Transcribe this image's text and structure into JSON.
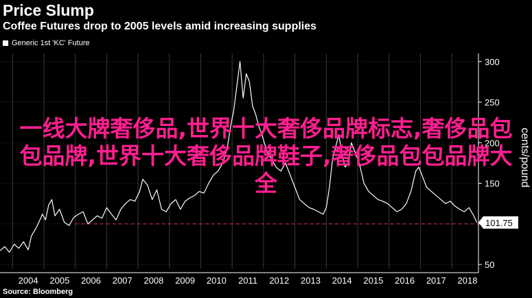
{
  "title": "Price Slump",
  "subtitle": "Coffee Futures drop to 2005 levels amid increasing supplies",
  "legend_label": "Generic 1st 'KC' Future",
  "source": "Source: Bloomberg",
  "overlay_text": "一线大牌奢侈品,世界十大奢侈品牌标志,奢侈品包包品牌,世界十大奢侈品牌鞋子,奢侈品包包品牌大全",
  "colors": {
    "background": "#000000",
    "line": "#ffffff",
    "reference_line": "#cc2a4a",
    "overlay": "#ff1f8f",
    "grid": "#3a3a3a",
    "value_box": "#ffffff"
  },
  "chart_data": {
    "type": "line",
    "ylabel": "cents/pound",
    "xlabel": "",
    "ylim": [
      45,
      310
    ],
    "y_ticks": [
      50,
      100,
      150,
      200,
      250,
      300
    ],
    "y_tick_labels": [
      "50",
      "",
      "150",
      "200",
      "250",
      "300"
    ],
    "x_ticks": [
      "2004",
      "2005",
      "2006",
      "2007",
      "2008",
      "2009",
      "2010",
      "2011",
      "2012",
      "2013",
      "2014",
      "2015",
      "2016",
      "2017",
      "2018"
    ],
    "xlim": [
      2003.6,
      2018.85
    ],
    "last_value_label": "101.75",
    "reference_value": 100,
    "grid": true,
    "legend": "top-left",
    "series": [
      {
        "name": "Generic 1st 'KC' Future",
        "x": [
          2003.6,
          2003.75,
          2003.9,
          2004.05,
          2004.2,
          2004.35,
          2004.5,
          2004.6,
          2004.75,
          2004.85,
          2004.95,
          2005.05,
          2005.15,
          2005.25,
          2005.35,
          2005.5,
          2005.65,
          2005.8,
          2005.95,
          2006.1,
          2006.25,
          2006.4,
          2006.55,
          2006.7,
          2006.85,
          2007.0,
          2007.15,
          2007.3,
          2007.45,
          2007.6,
          2007.75,
          2007.9,
          2008.05,
          2008.15,
          2008.3,
          2008.45,
          2008.6,
          2008.75,
          2008.9,
          2009.05,
          2009.2,
          2009.35,
          2009.5,
          2009.65,
          2009.8,
          2009.95,
          2010.1,
          2010.25,
          2010.4,
          2010.55,
          2010.7,
          2010.85,
          2010.95,
          2011.05,
          2011.15,
          2011.25,
          2011.35,
          2011.45,
          2011.55,
          2011.65,
          2011.75,
          2011.85,
          2011.95,
          2012.1,
          2012.25,
          2012.4,
          2012.55,
          2012.7,
          2012.85,
          2013.0,
          2013.15,
          2013.3,
          2013.45,
          2013.6,
          2013.75,
          2013.9,
          2014.0,
          2014.1,
          2014.2,
          2014.3,
          2014.4,
          2014.5,
          2014.6,
          2014.7,
          2014.8,
          2014.9,
          2015.05,
          2015.2,
          2015.35,
          2015.5,
          2015.65,
          2015.8,
          2015.95,
          2016.1,
          2016.25,
          2016.4,
          2016.55,
          2016.7,
          2016.85,
          2016.95,
          2017.05,
          2017.2,
          2017.35,
          2017.5,
          2017.65,
          2017.8,
          2017.95,
          2018.1,
          2018.25,
          2018.4,
          2018.55,
          2018.7,
          2018.8
        ],
        "values": [
          67,
          72,
          65,
          75,
          70,
          78,
          68,
          85,
          95,
          103,
          112,
          105,
          123,
          130,
          110,
          118,
          102,
          98,
          108,
          112,
          115,
          100,
          105,
          110,
          107,
          120,
          112,
          105,
          118,
          125,
          130,
          128,
          140,
          155,
          148,
          130,
          142,
          118,
          115,
          125,
          130,
          118,
          128,
          132,
          135,
          140,
          138,
          150,
          160,
          165,
          175,
          195,
          220,
          240,
          270,
          300,
          255,
          285,
          275,
          245,
          235,
          220,
          210,
          190,
          180,
          170,
          165,
          175,
          160,
          145,
          130,
          125,
          120,
          118,
          115,
          112,
          120,
          145,
          180,
          195,
          210,
          185,
          170,
          175,
          200,
          190,
          175,
          150,
          140,
          135,
          130,
          128,
          125,
          120,
          115,
          118,
          125,
          140,
          165,
          170,
          160,
          145,
          140,
          135,
          130,
          125,
          128,
          122,
          118,
          115,
          120,
          110,
          101.75
        ]
      }
    ]
  }
}
